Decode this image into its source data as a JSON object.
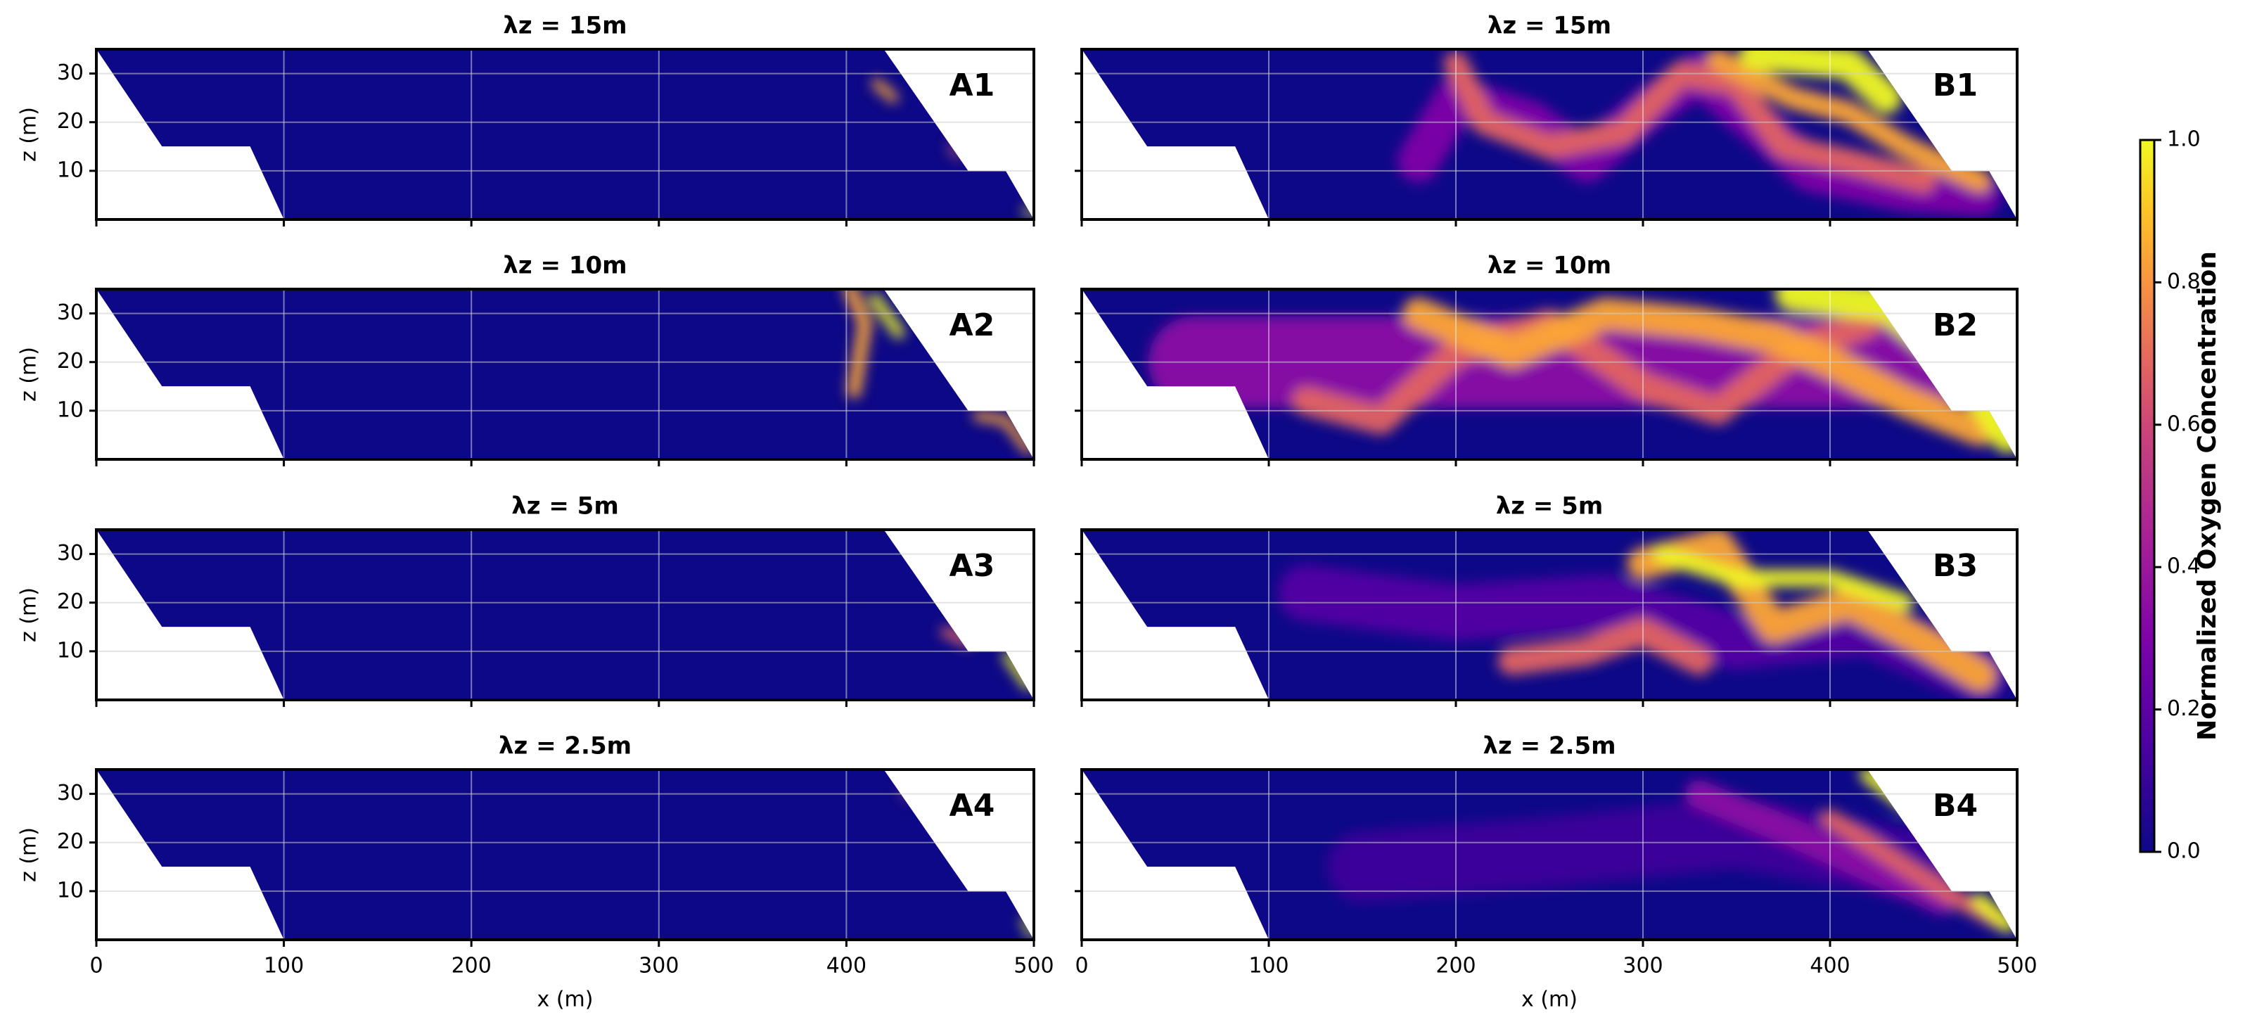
{
  "chart_data": [
    {
      "type": "heatmap",
      "title": "λz = 15m",
      "label": "A1",
      "xlim": [
        0,
        500
      ],
      "ylim": [
        0,
        35
      ],
      "xticks": [
        0,
        100,
        200,
        300,
        400,
        500
      ],
      "yticks": [
        10,
        20,
        30
      ],
      "ylabel": "z (m)"
    },
    {
      "type": "heatmap",
      "title": "λz = 10m",
      "label": "A2",
      "xlim": [
        0,
        500
      ],
      "ylim": [
        0,
        35
      ],
      "xticks": [
        0,
        100,
        200,
        300,
        400,
        500
      ],
      "yticks": [
        10,
        20,
        30
      ],
      "ylabel": "z (m)"
    },
    {
      "type": "heatmap",
      "title": "λz = 5m",
      "label": "A3",
      "xlim": [
        0,
        500
      ],
      "ylim": [
        0,
        35
      ],
      "xticks": [
        0,
        100,
        200,
        300,
        400,
        500
      ],
      "yticks": [
        10,
        20,
        30
      ],
      "ylabel": "z (m)"
    },
    {
      "type": "heatmap",
      "title": "λz = 2.5m",
      "label": "A4",
      "xlim": [
        0,
        500
      ],
      "ylim": [
        0,
        35
      ],
      "xticks": [
        0,
        100,
        200,
        300,
        400,
        500
      ],
      "yticks": [
        10,
        20,
        30
      ],
      "ylabel": "z (m)",
      "xlabel": "x (m)"
    },
    {
      "type": "heatmap",
      "title": "λz = 15m",
      "label": "B1",
      "xlim": [
        0,
        500
      ],
      "ylim": [
        0,
        35
      ],
      "xticks": [
        0,
        100,
        200,
        300,
        400,
        500
      ],
      "yticks": [
        10,
        20,
        30
      ]
    },
    {
      "type": "heatmap",
      "title": "λz = 10m",
      "label": "B2",
      "xlim": [
        0,
        500
      ],
      "ylim": [
        0,
        35
      ],
      "xticks": [
        0,
        100,
        200,
        300,
        400,
        500
      ],
      "yticks": [
        10,
        20,
        30
      ]
    },
    {
      "type": "heatmap",
      "title": "λz = 5m",
      "label": "B3",
      "xlim": [
        0,
        500
      ],
      "ylim": [
        0,
        35
      ],
      "xticks": [
        0,
        100,
        200,
        300,
        400,
        500
      ],
      "yticks": [
        10,
        20,
        30
      ]
    },
    {
      "type": "heatmap",
      "title": "λz = 2.5m",
      "label": "B4",
      "xlim": [
        0,
        500
      ],
      "ylim": [
        0,
        35
      ],
      "xticks": [
        0,
        100,
        200,
        300,
        400,
        500
      ],
      "yticks": [
        10,
        20,
        30
      ],
      "xlabel": "x (m)"
    },
    {
      "type": "colorbar",
      "label": "Normalized Oxygen Concentration",
      "clim": [
        0,
        1
      ],
      "ticks": [
        {
          "value": 0,
          "label": "0.0"
        },
        {
          "value": 0.2,
          "label": "0.2"
        },
        {
          "value": 0.4,
          "label": "0.4"
        },
        {
          "value": 0.6,
          "label": "0.6"
        },
        {
          "value": 0.8,
          "label": "0.8"
        },
        {
          "value": 1,
          "label": "1.0"
        }
      ]
    }
  ]
}
